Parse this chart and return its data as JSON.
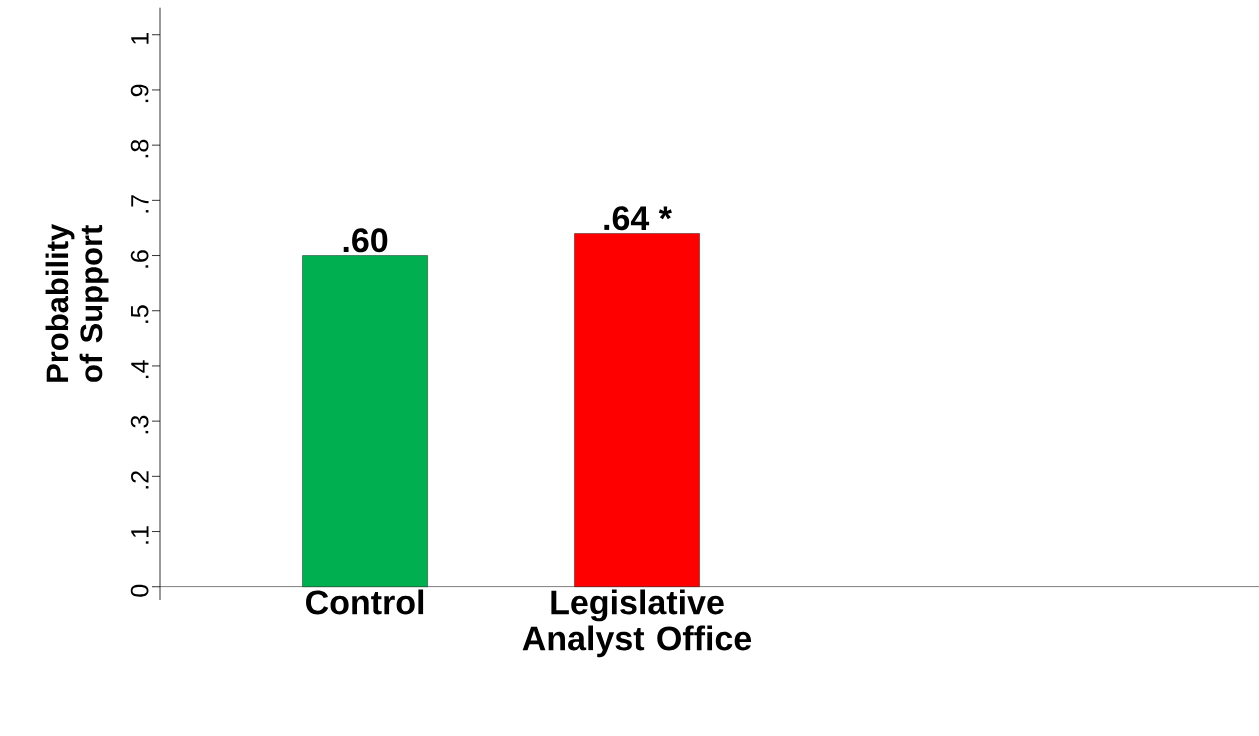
{
  "chart_data": {
    "type": "bar",
    "ylabel": "Probability of Support",
    "categories": [
      "Control",
      "Legislative Analyst Office"
    ],
    "values": [
      0.6,
      0.64
    ],
    "value_labels": [
      ".60",
      ".64 *"
    ],
    "colors": [
      "#00b050",
      "#ff0000"
    ],
    "ylim": [
      -0.024,
      1.049
    ],
    "yticks": [
      0,
      {
        "value": 0.1,
        "label": ".1"
      },
      {
        "value": 0.2,
        "label": ".2"
      },
      {
        "value": 0.3,
        "label": ".3"
      },
      {
        "value": 0.4,
        "label": ".4"
      },
      {
        "value": 0.5,
        "label": ".5"
      },
      {
        "value": 0.6,
        "label": ".6"
      },
      {
        "value": 0.7,
        "label": ".7"
      },
      {
        "value": 0.8,
        "label": ".8"
      },
      {
        "value": 0.9,
        "label": ".9"
      },
      1
    ],
    "grid": false
  }
}
